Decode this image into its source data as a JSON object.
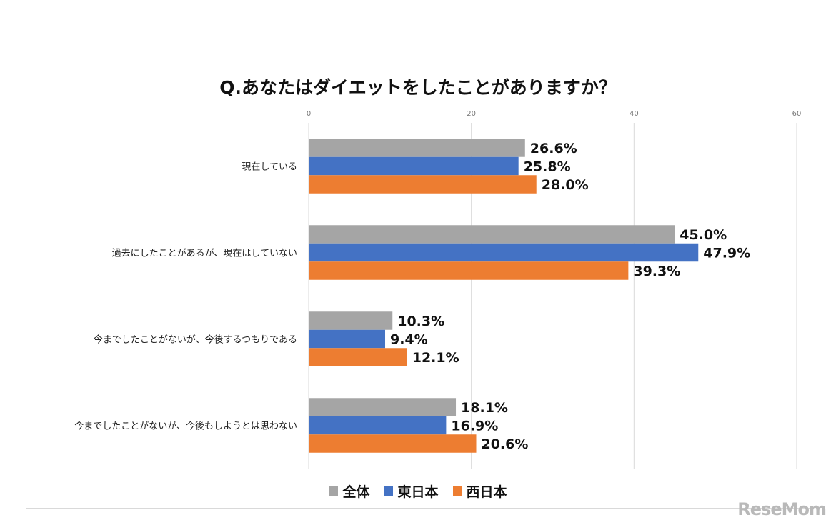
{
  "chart_data": {
    "type": "bar",
    "orientation": "horizontal",
    "title": "Q.あなたはダイエットをしたことがありますか？",
    "categories": [
      "現在している",
      "過去にしたことがあるが、現在はしていない",
      "今までしたことがないが、今後するつもりである",
      "今までしたことがないが、今後もしようとは思わない"
    ],
    "series": [
      {
        "name": "全体",
        "color": "#a5a5a5",
        "values": [
          26.6,
          45.0,
          10.3,
          18.1
        ]
      },
      {
        "name": "東日本",
        "color": "#4472c4",
        "values": [
          25.8,
          47.9,
          9.4,
          16.9
        ]
      },
      {
        "name": "西日本",
        "color": "#ed7d31",
        "values": [
          28.0,
          39.3,
          12.1,
          20.6
        ]
      }
    ],
    "xlim": [
      0,
      60
    ],
    "xticks": [
      0,
      20,
      40,
      60
    ],
    "xtick_labels": [
      "0",
      "20",
      "40",
      "60"
    ],
    "value_suffix": "%",
    "grid": true,
    "legend_position": "bottom"
  },
  "watermark": "ReseMom"
}
